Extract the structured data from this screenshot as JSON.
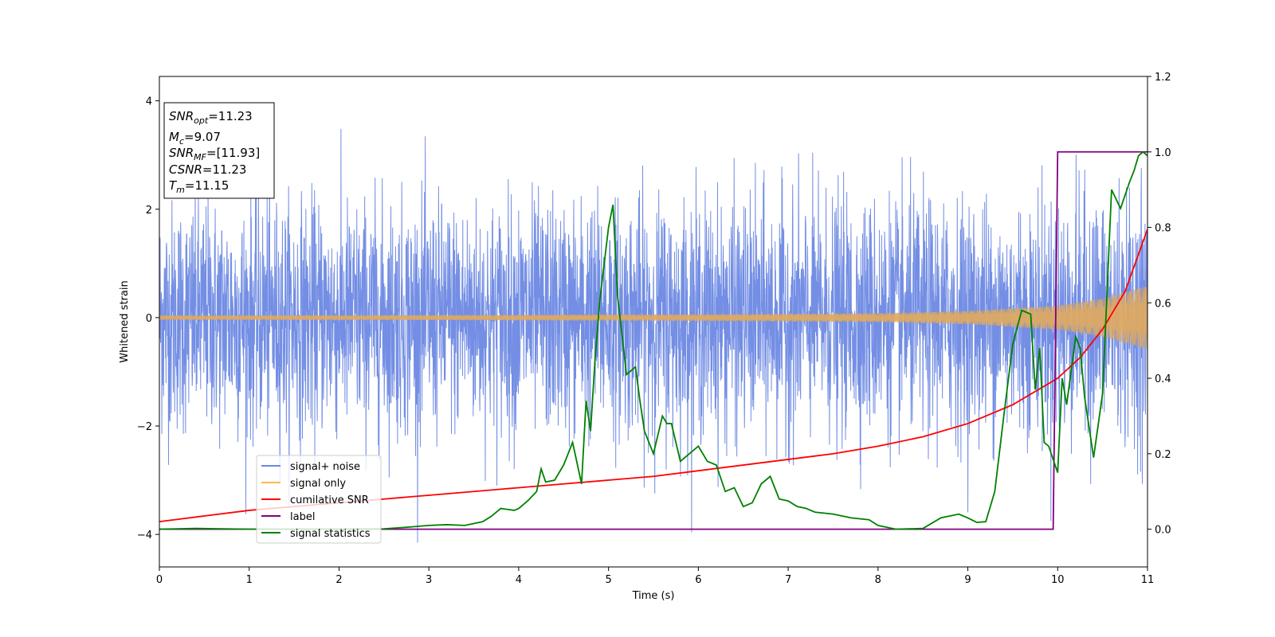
{
  "chart_data": {
    "type": "line",
    "xlabel": "Time (s)",
    "ylabel": "Whitened strain",
    "xlim": [
      0,
      11
    ],
    "ylim_left": [
      -4.6,
      4.45
    ],
    "ylim_right": [
      -0.1,
      1.2
    ],
    "x_ticks": [
      0,
      1,
      2,
      3,
      4,
      5,
      6,
      7,
      8,
      9,
      10,
      11
    ],
    "y_ticks_left": [
      -4,
      -2,
      0,
      2,
      4
    ],
    "y_ticks_left_labels": [
      "−4",
      "−2",
      "0",
      "2",
      "4"
    ],
    "y_ticks_right": [
      0.0,
      0.2,
      0.4,
      0.6,
      0.8,
      1.0,
      1.2
    ],
    "y_ticks_right_labels": [
      "0.0",
      "0.2",
      "0.4",
      "0.6",
      "0.8",
      "1.0",
      "1.2"
    ],
    "grid": false,
    "legend_position": "lower-left",
    "info_box": {
      "lines": [
        {
          "sym": "SNR",
          "sub": "opt",
          "rest": "=11.23"
        },
        {
          "sym": "M",
          "sub": "c",
          "rest": "=9.07"
        },
        {
          "sym": "SNR",
          "sub": "MF",
          "rest": "=[11.93]"
        },
        {
          "sym": "CSNR",
          "sub": "",
          "rest": "=11.23"
        },
        {
          "sym": "T",
          "sub": "m",
          "rest": "=11.15"
        }
      ]
    },
    "series": [
      {
        "name": "signal+ noise",
        "axis": "left",
        "color": "#6b88e3",
        "kind": "noise_band",
        "description_range": [
          -4.15,
          4.05
        ]
      },
      {
        "name": "signal only",
        "axis": "left",
        "color": "#ffb74d",
        "kind": "chirp",
        "envelope_x": [
          0,
          3,
          6,
          8,
          9,
          10,
          10.5,
          11
        ],
        "envelope_y": [
          0.04,
          0.045,
          0.06,
          0.08,
          0.12,
          0.22,
          0.35,
          0.58
        ]
      },
      {
        "name": "cumilative SNR",
        "axis": "right",
        "color": "#ff0000",
        "x": [
          0,
          0.5,
          1,
          1.5,
          2,
          2.5,
          3,
          3.5,
          4,
          4.5,
          5,
          5.5,
          6,
          6.5,
          7,
          7.5,
          8,
          8.5,
          9,
          9.5,
          10,
          10.25,
          10.5,
          10.75,
          11
        ],
        "y": [
          0.02,
          0.035,
          0.05,
          0.06,
          0.07,
          0.08,
          0.09,
          0.1,
          0.11,
          0.12,
          0.13,
          0.14,
          0.155,
          0.17,
          0.185,
          0.2,
          0.22,
          0.245,
          0.28,
          0.33,
          0.4,
          0.455,
          0.53,
          0.63,
          0.795
        ]
      },
      {
        "name": "label",
        "axis": "right",
        "color": "#800080",
        "x": [
          0,
          9.95,
          10.0,
          11
        ],
        "y": [
          0,
          0,
          1,
          1
        ]
      },
      {
        "name": "signal statistics",
        "axis": "right",
        "color": "#008000",
        "x": [
          0,
          0.4,
          1,
          2,
          2.5,
          2.8,
          3.0,
          3.2,
          3.4,
          3.6,
          3.7,
          3.8,
          3.95,
          4.0,
          4.1,
          4.2,
          4.25,
          4.3,
          4.4,
          4.5,
          4.6,
          4.7,
          4.75,
          4.8,
          4.85,
          4.9,
          5.0,
          5.05,
          5.1,
          5.2,
          5.3,
          5.35,
          5.4,
          5.5,
          5.6,
          5.65,
          5.7,
          5.8,
          5.9,
          6.0,
          6.1,
          6.2,
          6.3,
          6.4,
          6.5,
          6.6,
          6.7,
          6.8,
          6.9,
          7.0,
          7.1,
          7.2,
          7.3,
          7.5,
          7.7,
          7.9,
          8.0,
          8.2,
          8.5,
          8.7,
          8.9,
          9.0,
          9.1,
          9.2,
          9.3,
          9.4,
          9.5,
          9.6,
          9.7,
          9.75,
          9.8,
          9.85,
          9.9,
          10.0,
          10.05,
          10.1,
          10.2,
          10.25,
          10.3,
          10.4,
          10.5,
          10.6,
          10.7,
          10.8,
          10.85,
          10.9,
          10.95,
          11.0
        ],
        "y": [
          0,
          0.002,
          0,
          0,
          0.001,
          0.006,
          0.01,
          0.012,
          0.01,
          0.02,
          0.035,
          0.055,
          0.05,
          0.055,
          0.075,
          0.1,
          0.16,
          0.125,
          0.13,
          0.17,
          0.23,
          0.12,
          0.34,
          0.26,
          0.45,
          0.6,
          0.8,
          0.86,
          0.62,
          0.41,
          0.43,
          0.34,
          0.26,
          0.2,
          0.3,
          0.28,
          0.28,
          0.18,
          0.2,
          0.22,
          0.18,
          0.17,
          0.1,
          0.11,
          0.06,
          0.07,
          0.12,
          0.14,
          0.08,
          0.075,
          0.06,
          0.055,
          0.045,
          0.04,
          0.03,
          0.025,
          0.01,
          0,
          0.002,
          0.03,
          0.04,
          0.03,
          0.018,
          0.02,
          0.1,
          0.3,
          0.49,
          0.58,
          0.57,
          0.37,
          0.48,
          0.23,
          0.22,
          0.15,
          0.4,
          0.33,
          0.51,
          0.48,
          0.35,
          0.19,
          0.36,
          0.9,
          0.85,
          0.92,
          0.95,
          0.99,
          1.0,
          0.99
        ]
      }
    ]
  }
}
